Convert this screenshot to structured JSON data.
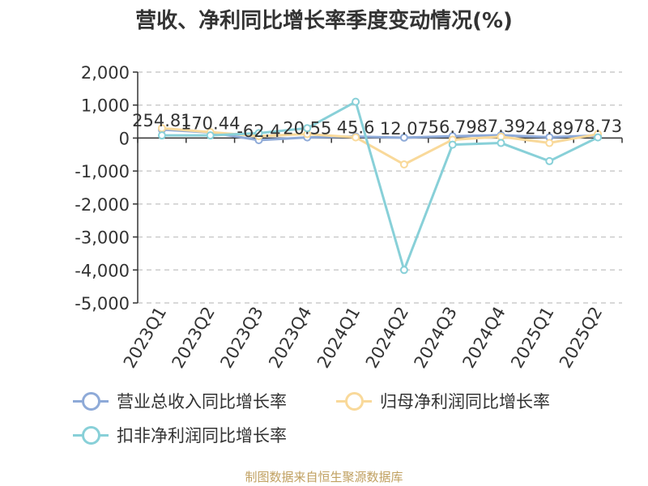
{
  "title": "营收、净利同比增长率季度变动情况(%)",
  "source": "制图数据来自恒生聚源数据库",
  "colors": {
    "revenue": "#8eaad8",
    "net_profit": "#f9d99a",
    "deducted": "#88d0d8"
  },
  "chart_data": {
    "type": "line",
    "title": "营收、净利同比增长率季度变动情况(%)",
    "categories": [
      "2023Q1",
      "2023Q2",
      "2023Q3",
      "2023Q4",
      "2024Q1",
      "2024Q2",
      "2024Q3",
      "2024Q4",
      "2025Q1",
      "2025Q2"
    ],
    "yticks": [
      "2,000",
      "1,000",
      "0",
      "-1,000",
      "-2,000",
      "-3,000",
      "-4,000",
      "-5,000"
    ],
    "ylim": [
      -5000,
      2000
    ],
    "grid": true,
    "legend_position": "bottom",
    "series": [
      {
        "name": "营业总收入同比增长率",
        "key": "revenue",
        "values": [
          254.81,
          170.44,
          -62.4,
          20.55,
          45.6,
          12.07,
          56.79,
          87.39,
          24.89,
          78.73
        ],
        "labels": [
          "254.81",
          "170.44",
          "-62.4",
          "20.55",
          "45.6",
          "12.07",
          "56.79",
          "87.39",
          "24.89",
          "78.73"
        ]
      },
      {
        "name": "归母净利润同比增长率",
        "key": "net_profit",
        "values": [
          300,
          180,
          60,
          120,
          20,
          -800,
          -50,
          40,
          -150,
          120
        ]
      },
      {
        "name": "扣非净利润同比增长率",
        "key": "deducted",
        "values": [
          80,
          80,
          150,
          300,
          1100,
          -4000,
          -200,
          -150,
          -700,
          20
        ]
      }
    ]
  }
}
